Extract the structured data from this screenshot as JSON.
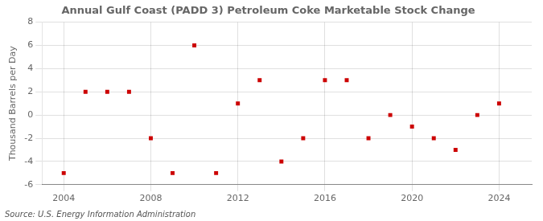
{
  "chart_data": {
    "type": "scatter",
    "title": "Annual Gulf Coast (PADD 3) Petroleum Coke Marketable Stock Change",
    "ylabel": "Thousand Barrels per Day",
    "annotation": "Source: U.S. Energy Information Administration",
    "x": [
      2004,
      2005,
      2006,
      2007,
      2008,
      2009,
      2010,
      2011,
      2012,
      2013,
      2014,
      2015,
      2016,
      2017,
      2018,
      2019,
      2020,
      2021,
      2022,
      2023,
      2024
    ],
    "values": [
      -5.0,
      2.0,
      2.0,
      2.0,
      -2.0,
      -5.0,
      6.0,
      -5.0,
      1.0,
      3.0,
      -4.0,
      -2.0,
      3.0,
      3.0,
      -2.0,
      0.0,
      -1.0,
      -2.0,
      -3.0,
      0.0,
      1.0
    ],
    "color": "#cc0000",
    "marker": "square",
    "xlim": [
      2003.0,
      2025.5
    ],
    "xticks": [
      2004,
      2008,
      2012,
      2016,
      2020,
      2024
    ],
    "ylim": [
      -6,
      8
    ],
    "yticks": [
      -6,
      -4,
      -2,
      0,
      2,
      4,
      6,
      8
    ],
    "grid": true
  }
}
